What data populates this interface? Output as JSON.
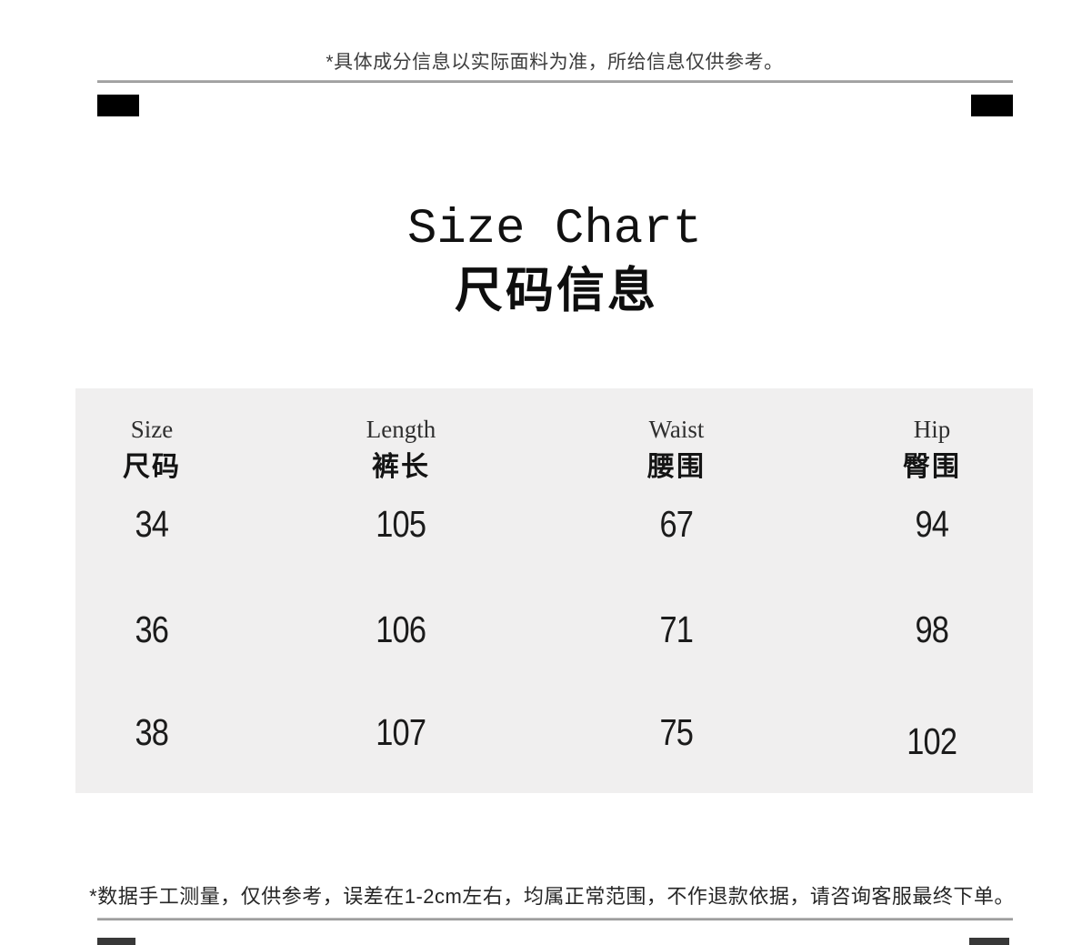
{
  "header": {
    "title_en": "Size Chart",
    "title_cn": "尺码信息"
  },
  "notes": {
    "top": "*具体成分信息以实际面料为准，所给信息仅供参考。",
    "bottom": "*数据手工测量，仅供参考，误差在1-2cm左右，均属正常范围，不作退款依据，请咨询客服最终下单。"
  },
  "chart_data": {
    "type": "table",
    "title": "Size Chart",
    "subtitle": "尺码信息",
    "columns": [
      {
        "en": "Size",
        "cn": "尺码"
      },
      {
        "en": "Length",
        "cn": "裤长"
      },
      {
        "en": "Waist",
        "cn": "腰围"
      },
      {
        "en": "Hip",
        "cn": "臀围"
      }
    ],
    "rows": [
      [
        "34",
        "105",
        "67",
        "94"
      ],
      [
        "36",
        "106",
        "71",
        "98"
      ],
      [
        "38",
        "107",
        "75",
        "102"
      ]
    ]
  },
  "colors": {
    "card_background": "#f0efef",
    "divider": "#9a9a9a",
    "corner_block": "#000000",
    "text": "#1b1b1b"
  }
}
